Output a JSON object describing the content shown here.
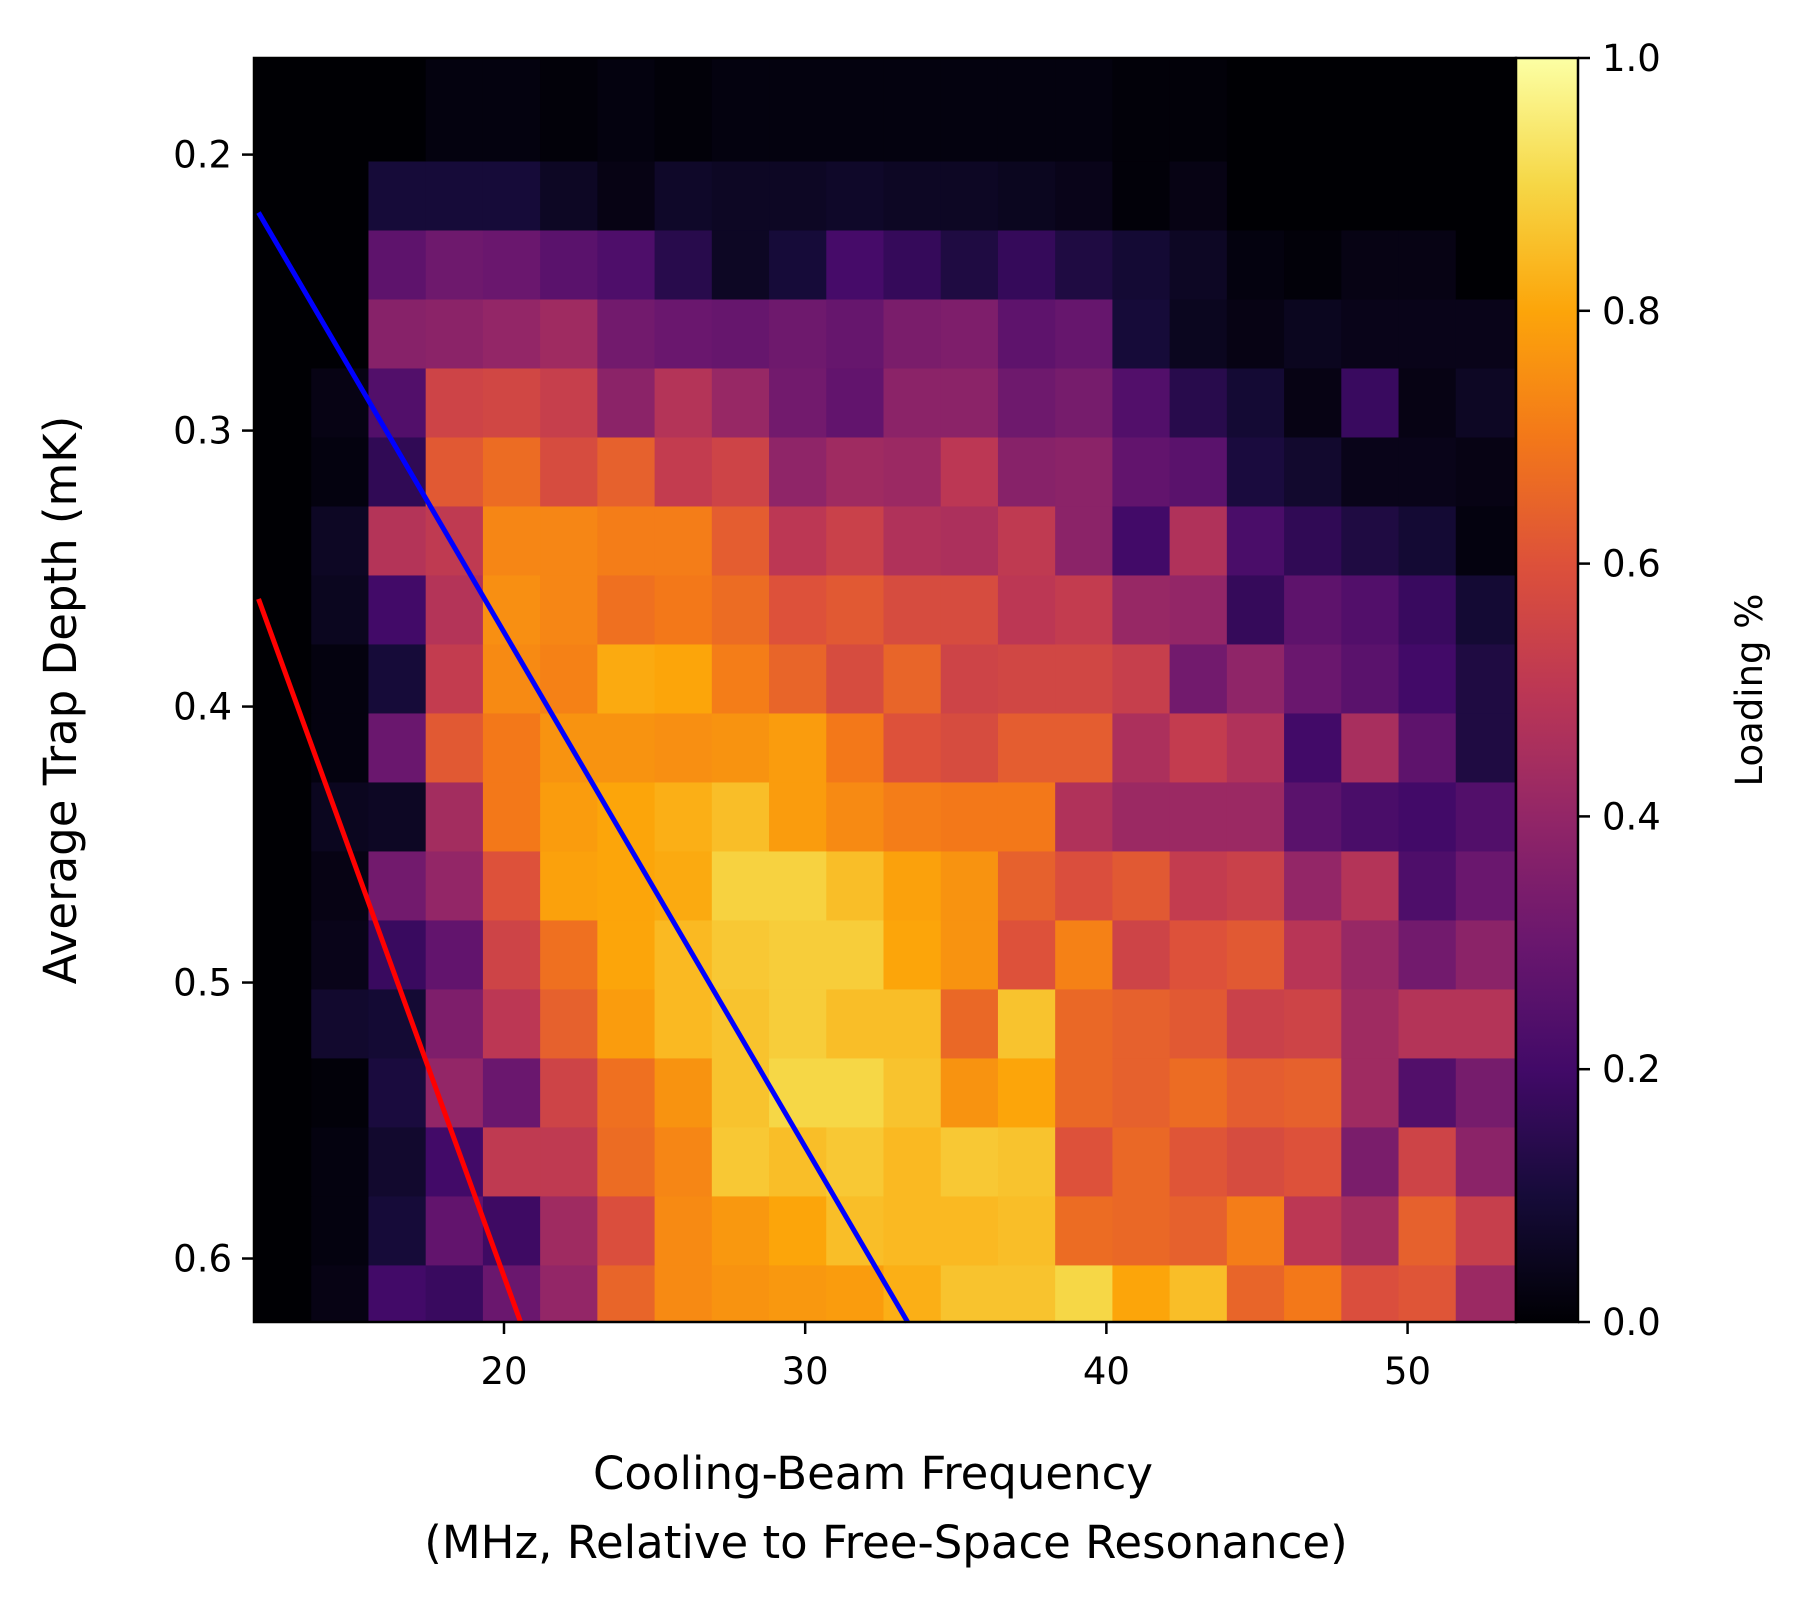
{
  "chart_data": {
    "type": "heatmap",
    "xlabel_line1": "Cooling-Beam Frequency",
    "xlabel_line2": "(MHz, Relative to Free-Space Resonance)",
    "ylabel": "Average Trap Depth (mK)",
    "colorbar_label": "Loading %",
    "colormap": "inferno",
    "xlim": [
      11.7,
      53.6
    ],
    "ylim": [
      0.623,
      0.165
    ],
    "y_inverted": true,
    "x_ticks": [
      20,
      30,
      40,
      50
    ],
    "x_tick_labels": [
      "20",
      "30",
      "40",
      "50"
    ],
    "y_ticks": [
      0.2,
      0.3,
      0.4,
      0.5,
      0.6
    ],
    "y_tick_labels": [
      "0.2",
      "0.3",
      "0.4",
      "0.5",
      "0.6"
    ],
    "colorbar_ticks": [
      0.0,
      0.2,
      0.4,
      0.6,
      0.8,
      1.0
    ],
    "colorbar_tick_labels": [
      "0.0",
      "0.2",
      "0.4",
      "0.6",
      "0.8",
      "1.0"
    ],
    "clim": [
      0,
      1
    ],
    "x_centers": [
      12.65,
      14.55,
      16.45,
      18.35,
      20.25,
      22.15,
      24.05,
      25.95,
      27.85,
      29.75,
      31.65,
      33.55,
      35.45,
      37.35,
      39.25,
      41.15,
      43.05,
      44.95,
      46.85,
      48.75,
      50.65,
      52.55
    ],
    "y_centers": [
      0.19,
      0.215,
      0.24,
      0.265,
      0.29,
      0.315,
      0.34,
      0.365,
      0.39,
      0.415,
      0.44,
      0.465,
      0.49,
      0.515,
      0.54,
      0.565,
      0.59,
      0.615
    ],
    "z": [
      [
        0.0,
        0.0,
        0.0,
        0.02,
        0.02,
        0.01,
        0.02,
        0.01,
        0.02,
        0.02,
        0.02,
        0.02,
        0.02,
        0.02,
        0.02,
        0.01,
        0.01,
        0.0,
        0.0,
        0.0,
        0.0,
        0.0
      ],
      [
        0.0,
        0.0,
        0.1,
        0.1,
        0.1,
        0.06,
        0.03,
        0.07,
        0.06,
        0.06,
        0.07,
        0.06,
        0.06,
        0.05,
        0.04,
        0.01,
        0.03,
        0.0,
        0.0,
        0.0,
        0.0,
        0.0
      ],
      [
        0.0,
        0.0,
        0.27,
        0.31,
        0.3,
        0.26,
        0.23,
        0.14,
        0.06,
        0.1,
        0.21,
        0.17,
        0.12,
        0.17,
        0.12,
        0.09,
        0.06,
        0.02,
        0.01,
        0.03,
        0.03,
        0.0
      ],
      [
        0.0,
        0.0,
        0.37,
        0.38,
        0.4,
        0.43,
        0.32,
        0.3,
        0.29,
        0.31,
        0.29,
        0.34,
        0.35,
        0.27,
        0.29,
        0.1,
        0.05,
        0.03,
        0.05,
        0.04,
        0.04,
        0.04
      ],
      [
        0.0,
        0.03,
        0.24,
        0.55,
        0.56,
        0.53,
        0.38,
        0.48,
        0.41,
        0.32,
        0.28,
        0.38,
        0.38,
        0.31,
        0.33,
        0.24,
        0.14,
        0.09,
        0.03,
        0.18,
        0.03,
        0.06
      ],
      [
        0.0,
        0.02,
        0.16,
        0.62,
        0.67,
        0.58,
        0.64,
        0.52,
        0.55,
        0.39,
        0.43,
        0.42,
        0.5,
        0.37,
        0.38,
        0.28,
        0.26,
        0.11,
        0.08,
        0.04,
        0.04,
        0.03
      ],
      [
        0.0,
        0.06,
        0.48,
        0.51,
        0.73,
        0.73,
        0.71,
        0.71,
        0.63,
        0.5,
        0.54,
        0.47,
        0.46,
        0.51,
        0.38,
        0.2,
        0.47,
        0.22,
        0.16,
        0.12,
        0.09,
        0.02
      ],
      [
        0.0,
        0.05,
        0.2,
        0.48,
        0.75,
        0.73,
        0.68,
        0.7,
        0.67,
        0.6,
        0.62,
        0.58,
        0.58,
        0.5,
        0.52,
        0.41,
        0.4,
        0.17,
        0.27,
        0.24,
        0.18,
        0.09
      ],
      [
        0.0,
        0.02,
        0.1,
        0.52,
        0.74,
        0.72,
        0.81,
        0.8,
        0.71,
        0.65,
        0.58,
        0.65,
        0.55,
        0.56,
        0.56,
        0.53,
        0.32,
        0.39,
        0.3,
        0.26,
        0.2,
        0.12
      ],
      [
        0.0,
        0.02,
        0.3,
        0.62,
        0.7,
        0.76,
        0.76,
        0.75,
        0.76,
        0.78,
        0.7,
        0.6,
        0.58,
        0.63,
        0.63,
        0.46,
        0.52,
        0.47,
        0.2,
        0.45,
        0.27,
        0.12
      ],
      [
        0.0,
        0.05,
        0.06,
        0.44,
        0.7,
        0.78,
        0.8,
        0.82,
        0.85,
        0.78,
        0.74,
        0.71,
        0.7,
        0.7,
        0.47,
        0.42,
        0.42,
        0.42,
        0.26,
        0.22,
        0.2,
        0.24
      ],
      [
        0.0,
        0.03,
        0.32,
        0.4,
        0.6,
        0.79,
        0.8,
        0.81,
        0.89,
        0.89,
        0.85,
        0.79,
        0.76,
        0.64,
        0.59,
        0.62,
        0.52,
        0.54,
        0.4,
        0.48,
        0.23,
        0.3
      ],
      [
        0.0,
        0.04,
        0.18,
        0.28,
        0.55,
        0.68,
        0.8,
        0.84,
        0.87,
        0.88,
        0.88,
        0.8,
        0.76,
        0.6,
        0.72,
        0.55,
        0.6,
        0.62,
        0.49,
        0.41,
        0.32,
        0.38
      ],
      [
        0.0,
        0.08,
        0.09,
        0.35,
        0.5,
        0.64,
        0.78,
        0.84,
        0.86,
        0.88,
        0.85,
        0.85,
        0.66,
        0.86,
        0.66,
        0.64,
        0.62,
        0.54,
        0.55,
        0.43,
        0.48,
        0.48
      ],
      [
        0.0,
        0.01,
        0.11,
        0.4,
        0.3,
        0.55,
        0.68,
        0.76,
        0.86,
        0.9,
        0.9,
        0.86,
        0.76,
        0.8,
        0.66,
        0.64,
        0.67,
        0.63,
        0.64,
        0.43,
        0.24,
        0.33
      ],
      [
        0.0,
        0.02,
        0.08,
        0.2,
        0.51,
        0.51,
        0.67,
        0.73,
        0.87,
        0.85,
        0.87,
        0.84,
        0.87,
        0.86,
        0.6,
        0.66,
        0.61,
        0.58,
        0.6,
        0.34,
        0.55,
        0.38
      ],
      [
        0.0,
        0.02,
        0.1,
        0.28,
        0.19,
        0.43,
        0.59,
        0.74,
        0.77,
        0.8,
        0.85,
        0.84,
        0.84,
        0.85,
        0.67,
        0.66,
        0.64,
        0.71,
        0.5,
        0.44,
        0.64,
        0.53
      ],
      [
        0.0,
        0.03,
        0.2,
        0.18,
        0.3,
        0.4,
        0.65,
        0.74,
        0.76,
        0.77,
        0.78,
        0.82,
        0.86,
        0.86,
        0.9,
        0.8,
        0.85,
        0.65,
        0.7,
        0.59,
        0.61,
        0.42
      ]
    ],
    "series": [
      {
        "color": "#0000ff",
        "x": [
          11.85,
          33.4
        ],
        "y": [
          0.221,
          0.623
        ]
      },
      {
        "color": "#ff0000",
        "x": [
          11.85,
          20.55
        ],
        "y": [
          0.361,
          0.623
        ]
      }
    ]
  }
}
